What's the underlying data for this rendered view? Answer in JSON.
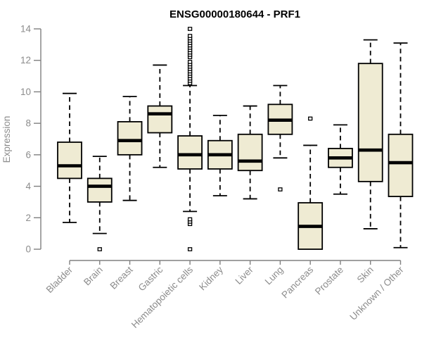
{
  "chart_data": {
    "type": "box",
    "title": "ENSG00000180644 - PRF1",
    "ylabel": "Expression",
    "xlabel": "",
    "ylim": [
      0,
      14
    ],
    "yticks": [
      0,
      2,
      4,
      6,
      8,
      10,
      12,
      14
    ],
    "grid": false,
    "legend": "none",
    "categories": [
      "Bladder",
      "Brain",
      "Breast",
      "Gastric",
      "Hematopoietic cells",
      "Kidney",
      "Liver",
      "Lung",
      "Pancreas",
      "Prostate",
      "Skin",
      "Unknown / Other"
    ],
    "series": [
      {
        "label": "Bladder",
        "whisker_low": 1.7,
        "q1": 4.5,
        "median": 5.3,
        "q3": 6.8,
        "whisker_high": 9.9,
        "outliers": []
      },
      {
        "label": "Brain",
        "whisker_low": 1.0,
        "q1": 3.0,
        "median": 4.0,
        "q3": 4.5,
        "whisker_high": 5.9,
        "outliers": [
          0
        ]
      },
      {
        "label": "Breast",
        "whisker_low": 3.1,
        "q1": 6.0,
        "median": 6.9,
        "q3": 8.1,
        "whisker_high": 9.7,
        "outliers": []
      },
      {
        "label": "Gastric",
        "whisker_low": 5.2,
        "q1": 7.4,
        "median": 8.6,
        "q3": 9.1,
        "whisker_high": 11.7,
        "outliers": []
      },
      {
        "label": "Hematopoietic cells",
        "whisker_low": 2.4,
        "q1": 5.1,
        "median": 6.0,
        "q3": 7.2,
        "whisker_high": 10.4,
        "outliers": [
          0,
          1.6,
          1.75,
          1.9,
          10.55,
          10.7,
          10.85,
          11.0,
          11.15,
          11.3,
          11.45,
          11.6,
          11.75,
          11.9,
          12.2,
          12.35,
          12.5,
          12.65,
          12.8,
          12.95,
          13.1,
          13.25,
          13.4,
          13.55,
          14.0
        ]
      },
      {
        "label": "Kidney",
        "whisker_low": 3.4,
        "q1": 5.1,
        "median": 6.0,
        "q3": 6.9,
        "whisker_high": 8.5,
        "outliers": []
      },
      {
        "label": "Liver",
        "whisker_low": 3.2,
        "q1": 5.0,
        "median": 5.6,
        "q3": 7.3,
        "whisker_high": 9.1,
        "outliers": []
      },
      {
        "label": "Lung",
        "whisker_low": 5.8,
        "q1": 7.3,
        "median": 8.2,
        "q3": 9.2,
        "whisker_high": 10.4,
        "outliers": [
          3.8
        ]
      },
      {
        "label": "Pancreas",
        "whisker_low": 0.0,
        "q1": 0.0,
        "median": 1.45,
        "q3": 2.95,
        "whisker_high": 6.6,
        "outliers": [
          8.3
        ]
      },
      {
        "label": "Prostate",
        "whisker_low": 3.5,
        "q1": 5.2,
        "median": 5.8,
        "q3": 6.4,
        "whisker_high": 7.9,
        "outliers": []
      },
      {
        "label": "Skin",
        "whisker_low": 1.3,
        "q1": 4.3,
        "median": 6.3,
        "q3": 11.8,
        "whisker_high": 13.3,
        "outliers": []
      },
      {
        "label": "Unknown / Other",
        "whisker_low": 0.1,
        "q1": 3.35,
        "median": 5.5,
        "q3": 7.3,
        "whisker_high": 13.1,
        "outliers": []
      }
    ]
  },
  "styles": {
    "background": "#ffffff",
    "box_fill": "#efebd3",
    "box_border": "#000000",
    "median_color": "#000000",
    "whisker_color": "#000000",
    "outlier_fill": "#ffffff",
    "outlier_border": "#000000",
    "axis_color": "#808080",
    "tick_label_color": "#8c8c8c",
    "title_color": "#000000"
  }
}
